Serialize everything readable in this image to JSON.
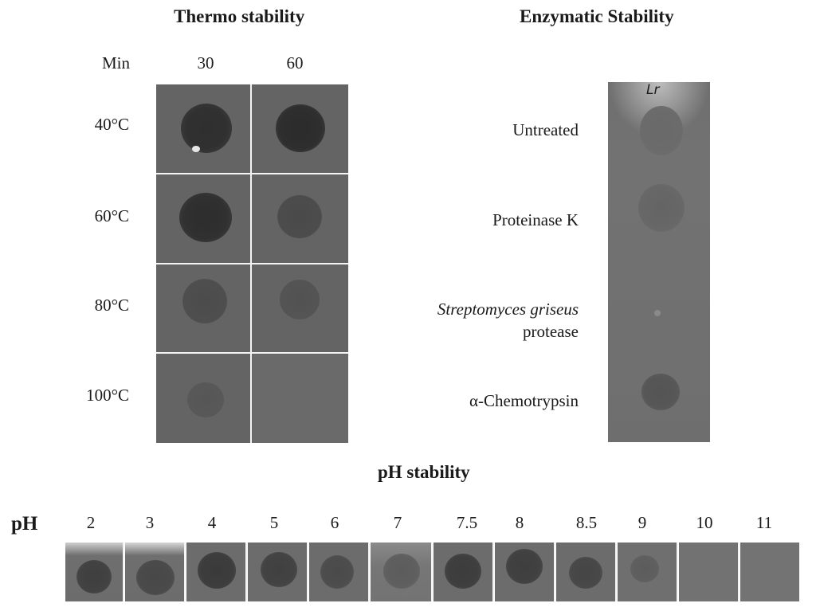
{
  "thermo": {
    "title": "Thermo stability",
    "min_label": "Min",
    "times": [
      "30",
      "60"
    ],
    "temperatures": [
      "40°C",
      "60°C",
      "80°C",
      "100°C"
    ]
  },
  "enzymatic": {
    "title": "Enzymatic Stability",
    "treatments": [
      "Untreated",
      "Proteinase K",
      "Streptomyces griseus",
      "protease",
      "α-Chemotrypsin"
    ],
    "strip_marker": "Lr"
  },
  "ph": {
    "title": "pH stability",
    "axis_label": "pH",
    "values": [
      "2",
      "3",
      "4",
      "5",
      "6",
      "7",
      "7.5",
      "8",
      "8.5",
      "9",
      "10",
      "11"
    ]
  }
}
